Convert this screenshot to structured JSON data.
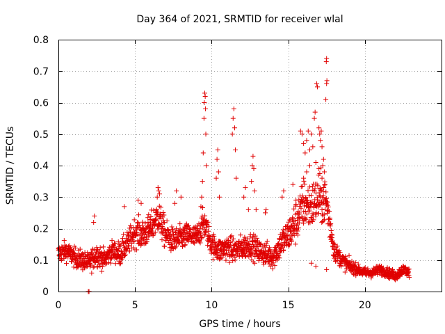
{
  "chart_data": {
    "type": "scatter",
    "title": "Day 364 of 2021, SRMTID for receiver wlal",
    "xlabel": "GPS time / hours",
    "ylabel": "SRMTID / TECUs",
    "xlim": [
      0,
      25
    ],
    "ylim": [
      0,
      0.8
    ],
    "x_ticks": [
      "0",
      "5",
      "10",
      "15",
      "20"
    ],
    "y_ticks": [
      "0",
      "0.1",
      "0.2",
      "0.3",
      "0.4",
      "0.5",
      "0.6",
      "0.7",
      "0.8"
    ],
    "grid": true,
    "marker": "+",
    "series": [
      {
        "name": "SRMTID",
        "color": "#e00000",
        "profile": {
          "x": [
            0,
            0.5,
            1,
            1.5,
            2,
            2.5,
            3,
            3.5,
            4,
            4.5,
            5,
            5.5,
            6,
            6.5,
            7,
            7.5,
            8,
            8.5,
            9,
            9.5,
            10,
            10.5,
            11,
            11.5,
            12,
            12.5,
            13,
            13.5,
            14,
            14.5,
            15,
            15.5,
            16,
            16.5,
            17,
            17.5,
            18,
            18.5,
            19,
            19.5,
            20,
            20.5,
            21,
            21.5,
            22,
            22.5,
            22.9
          ],
          "y_median": [
            0.12,
            0.13,
            0.11,
            0.1,
            0.09,
            0.12,
            0.1,
            0.13,
            0.12,
            0.15,
            0.19,
            0.18,
            0.2,
            0.24,
            0.18,
            0.16,
            0.17,
            0.18,
            0.17,
            0.22,
            0.15,
            0.13,
            0.14,
            0.13,
            0.14,
            0.15,
            0.13,
            0.12,
            0.11,
            0.15,
            0.18,
            0.22,
            0.28,
            0.27,
            0.3,
            0.28,
            0.13,
            0.1,
            0.08,
            0.07,
            0.06,
            0.06,
            0.07,
            0.06,
            0.05,
            0.07,
            0.06
          ],
          "y_spread": [
            0.04,
            0.04,
            0.04,
            0.04,
            0.04,
            0.05,
            0.04,
            0.04,
            0.05,
            0.05,
            0.06,
            0.06,
            0.06,
            0.07,
            0.06,
            0.05,
            0.05,
            0.05,
            0.05,
            0.06,
            0.05,
            0.05,
            0.05,
            0.05,
            0.05,
            0.05,
            0.05,
            0.05,
            0.05,
            0.06,
            0.07,
            0.09,
            0.1,
            0.1,
            0.1,
            0.1,
            0.04,
            0.03,
            0.03,
            0.02,
            0.02,
            0.02,
            0.02,
            0.02,
            0.02,
            0.02,
            0.02
          ]
        },
        "points": [
          [
            1.95,
            0.0
          ],
          [
            2.0,
            0.0
          ],
          [
            2.3,
            0.22
          ],
          [
            2.35,
            0.24
          ],
          [
            4.3,
            0.27
          ],
          [
            5.2,
            0.29
          ],
          [
            5.4,
            0.28
          ],
          [
            6.45,
            0.3
          ],
          [
            6.5,
            0.33
          ],
          [
            6.55,
            0.32
          ],
          [
            6.6,
            0.31
          ],
          [
            7.6,
            0.28
          ],
          [
            7.7,
            0.32
          ],
          [
            8.0,
            0.3
          ],
          [
            9.3,
            0.27
          ],
          [
            9.35,
            0.3
          ],
          [
            9.4,
            0.35
          ],
          [
            9.45,
            0.44
          ],
          [
            9.5,
            0.55
          ],
          [
            9.52,
            0.6
          ],
          [
            9.55,
            0.63
          ],
          [
            9.58,
            0.62
          ],
          [
            9.6,
            0.58
          ],
          [
            9.62,
            0.5
          ],
          [
            9.65,
            0.4
          ],
          [
            10.3,
            0.36
          ],
          [
            10.35,
            0.42
          ],
          [
            10.4,
            0.45
          ],
          [
            10.45,
            0.38
          ],
          [
            10.5,
            0.3
          ],
          [
            11.35,
            0.5
          ],
          [
            11.4,
            0.55
          ],
          [
            11.45,
            0.58
          ],
          [
            11.5,
            0.52
          ],
          [
            11.55,
            0.45
          ],
          [
            11.6,
            0.36
          ],
          [
            12.1,
            0.3
          ],
          [
            12.2,
            0.33
          ],
          [
            12.4,
            0.26
          ],
          [
            12.6,
            0.35
          ],
          [
            12.65,
            0.4
          ],
          [
            12.7,
            0.43
          ],
          [
            12.75,
            0.39
          ],
          [
            12.8,
            0.32
          ],
          [
            12.9,
            0.26
          ],
          [
            13.5,
            0.25
          ],
          [
            13.55,
            0.26
          ],
          [
            15.8,
            0.51
          ],
          [
            15.9,
            0.5
          ],
          [
            16.0,
            0.47
          ],
          [
            16.1,
            0.44
          ],
          [
            16.2,
            0.48
          ],
          [
            16.3,
            0.51
          ],
          [
            16.4,
            0.45
          ],
          [
            16.5,
            0.5
          ],
          [
            16.6,
            0.46
          ],
          [
            16.7,
            0.55
          ],
          [
            16.75,
            0.57
          ],
          [
            16.85,
            0.66
          ],
          [
            16.9,
            0.65
          ],
          [
            17.0,
            0.52
          ],
          [
            17.05,
            0.5
          ],
          [
            17.1,
            0.48
          ],
          [
            17.15,
            0.51
          ],
          [
            17.2,
            0.46
          ],
          [
            17.25,
            0.4
          ],
          [
            17.3,
            0.42
          ],
          [
            17.35,
            0.38
          ],
          [
            17.45,
            0.61
          ],
          [
            17.5,
            0.66
          ],
          [
            17.52,
            0.67
          ],
          [
            17.48,
            0.73
          ],
          [
            17.5,
            0.74
          ],
          [
            16.0,
            0.36
          ],
          [
            16.2,
            0.38
          ],
          [
            16.4,
            0.4
          ],
          [
            16.8,
            0.41
          ],
          [
            17.0,
            0.39
          ],
          [
            17.2,
            0.36
          ],
          [
            17.4,
            0.34
          ],
          [
            14.2,
            0.14
          ],
          [
            14.6,
            0.3
          ],
          [
            14.7,
            0.32
          ],
          [
            15.3,
            0.34
          ],
          [
            15.5,
            0.29
          ],
          [
            16.5,
            0.09
          ],
          [
            16.8,
            0.08
          ],
          [
            17.5,
            0.07
          ]
        ]
      }
    ]
  }
}
